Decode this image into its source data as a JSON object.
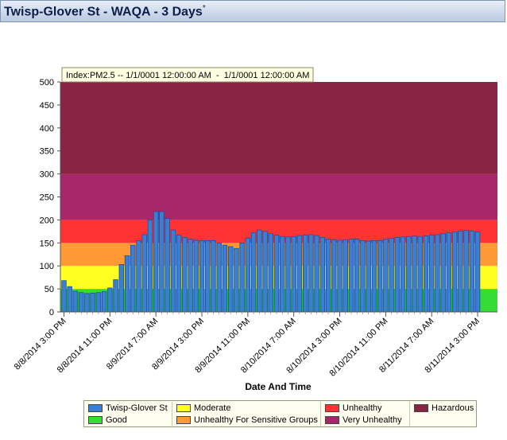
{
  "header": {
    "title": "Twisp-Glover St - WAQA - 3 Days",
    "asterisk": "*"
  },
  "chart_data": {
    "type": "bar",
    "title": "",
    "tooltip": "Index:PM2.5 -- 1/1/0001 12:00:00 AM  -  1/1/0001 12:00:00 AM",
    "xlabel": "Date And Time",
    "ylabel": "",
    "ylim": [
      0,
      500
    ],
    "yticks": [
      0,
      50,
      100,
      150,
      200,
      250,
      300,
      350,
      400,
      450,
      500
    ],
    "xticks": [
      {
        "index": 0,
        "label": "8/8/2014 3:00 PM"
      },
      {
        "index": 8,
        "label": "8/8/2014 11:00 PM"
      },
      {
        "index": 16,
        "label": "8/9/2014 7:00 AM"
      },
      {
        "index": 24,
        "label": "8/9/2014 3:00 PM"
      },
      {
        "index": 32,
        "label": "8/9/2014 11:00 PM"
      },
      {
        "index": 40,
        "label": "8/10/2014 7:00 AM"
      },
      {
        "index": 48,
        "label": "8/10/2014 3:00 PM"
      },
      {
        "index": 56,
        "label": "8/10/2014 11:00 PM"
      },
      {
        "index": 64,
        "label": "8/11/2014 7:00 AM"
      },
      {
        "index": 72,
        "label": "8/11/2014 3:00 PM"
      }
    ],
    "bands": [
      {
        "name": "Good",
        "from": 0,
        "to": 50,
        "color": "#33dd33"
      },
      {
        "name": "Moderate",
        "from": 50,
        "to": 100,
        "color": "#ffff22"
      },
      {
        "name": "Unhealthy For Sensitive Groups",
        "from": 100,
        "to": 150,
        "color": "#ff9933"
      },
      {
        "name": "Unhealthy",
        "from": 150,
        "to": 200,
        "color": "#ff3333"
      },
      {
        "name": "Very Unhealthy",
        "from": 200,
        "to": 300,
        "color": "#a8266a"
      },
      {
        "name": "Hazardous",
        "from": 300,
        "to": 500,
        "color": "#8a2443"
      }
    ],
    "series": [
      {
        "name": "Twisp-Glover St",
        "color": "#3b7fd4",
        "values": [
          68,
          55,
          45,
          42,
          40,
          41,
          42,
          44,
          52,
          70,
          103,
          122,
          145,
          155,
          168,
          200,
          218,
          218,
          203,
          178,
          167,
          162,
          158,
          156,
          155,
          155,
          155,
          150,
          145,
          142,
          138,
          150,
          160,
          172,
          178,
          175,
          170,
          167,
          164,
          163,
          164,
          166,
          167,
          168,
          166,
          162,
          158,
          157,
          156,
          157,
          158,
          158,
          155,
          154,
          155,
          155,
          158,
          160,
          162,
          163,
          164,
          165,
          164,
          165,
          167,
          168,
          170,
          172,
          174,
          176,
          177,
          176,
          174
        ]
      }
    ]
  },
  "legend": {
    "items": [
      {
        "label": "Twisp-Glover St",
        "color": "#3b7fd4"
      },
      {
        "label": "Good",
        "color": "#33dd33"
      },
      {
        "label": "Moderate",
        "color": "#ffff22"
      },
      {
        "label": "Unhealthy For Sensitive Groups",
        "color": "#ff9933"
      },
      {
        "label": "Unhealthy",
        "color": "#ff3333"
      },
      {
        "label": "Very Unhealthy",
        "color": "#a8266a"
      },
      {
        "label": "Hazardous",
        "color": "#8a2443"
      }
    ]
  }
}
